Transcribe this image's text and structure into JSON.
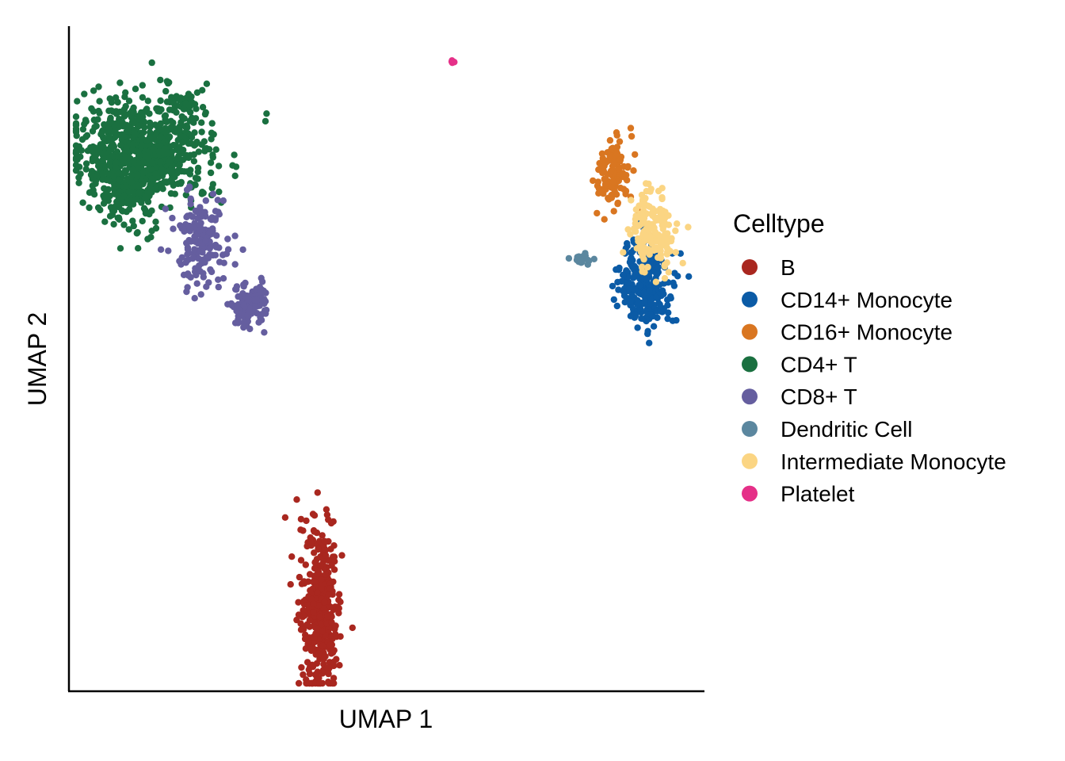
{
  "chart_data": {
    "type": "scatter",
    "xlabel": "UMAP 1",
    "ylabel": "UMAP 2",
    "xlim": [
      0,
      100
    ],
    "ylim": [
      0,
      100
    ],
    "x_ticks_shown": false,
    "y_ticks_shown": false,
    "grid": false,
    "legend": {
      "title": "Celltype",
      "placement": "right"
    },
    "series": [
      {
        "name": "B",
        "color": "#A9271F",
        "clusters": [
          {
            "center": [
              39.5,
              11.5
            ],
            "spread": [
              1.8,
              7.0
            ],
            "count": 420
          }
        ]
      },
      {
        "name": "CD14+ Monocyte",
        "color": "#0B5BA6",
        "clusters": [
          {
            "center": [
              92.0,
              61.0
            ],
            "spread": [
              2.6,
              4.2
            ],
            "count": 280
          }
        ]
      },
      {
        "name": "CD16+ Monocyte",
        "color": "#D97621",
        "clusters": [
          {
            "center": [
              87.0,
              78.0
            ],
            "spread": [
              1.6,
              3.6
            ],
            "count": 120
          }
        ]
      },
      {
        "name": "CD4+ T",
        "color": "#1A7040",
        "clusters": [
          {
            "center": [
              11.0,
              82.0
            ],
            "spread": [
              6.5,
              4.5
            ],
            "count": 700
          },
          {
            "center": [
              8.5,
              76.0
            ],
            "spread": [
              3.5,
              4.0
            ],
            "count": 160
          },
          {
            "center": [
              17.8,
              89.0
            ],
            "spread": [
              1.2,
              0.8
            ],
            "count": 25
          }
        ]
      },
      {
        "name": "CD8+ T",
        "color": "#655E9F",
        "clusters": [
          {
            "center": [
              20.5,
              67.5
            ],
            "spread": [
              2.6,
              4.0
            ],
            "count": 180
          },
          {
            "center": [
              28.0,
              58.0
            ],
            "spread": [
              1.7,
              2.2
            ],
            "count": 120
          }
        ]
      },
      {
        "name": "Dendritic Cell",
        "color": "#5B879F",
        "clusters": [
          {
            "center": [
              82.0,
              65.0
            ],
            "spread": [
              1.2,
              0.6
            ],
            "count": 20
          }
        ]
      },
      {
        "name": "Intermediate Monocyte",
        "color": "#FBD583",
        "clusters": [
          {
            "center": [
              93.0,
              69.5
            ],
            "spread": [
              2.2,
              3.5
            ],
            "count": 170
          }
        ]
      },
      {
        "name": "Platelet",
        "color": "#E53088",
        "clusters": [
          {
            "center": [
              61.0,
              95.5
            ],
            "spread": [
              0.25,
              0.2
            ],
            "count": 6
          }
        ]
      }
    ]
  }
}
